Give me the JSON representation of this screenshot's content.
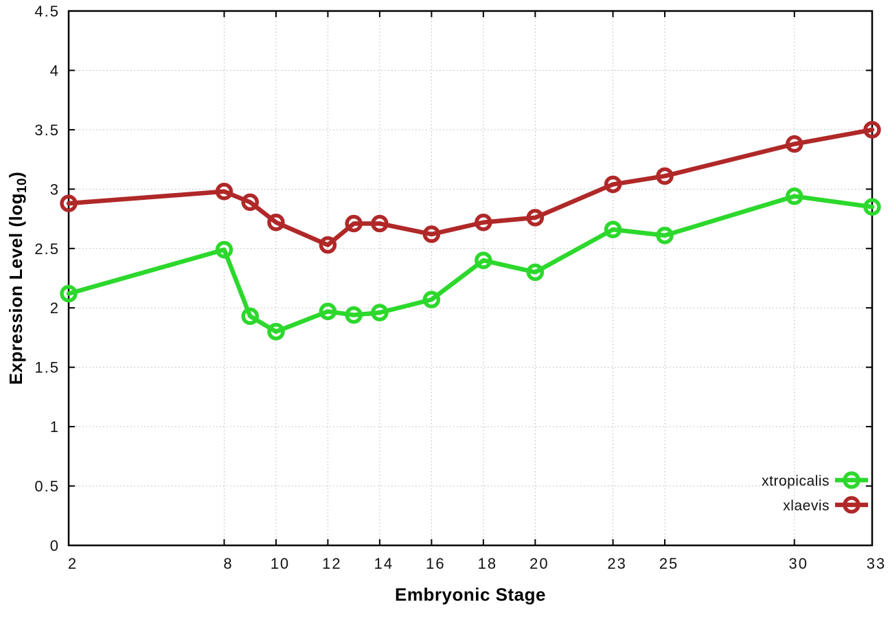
{
  "chart_data": {
    "type": "line",
    "xlabel": "Embryonic Stage",
    "ylabel": "Expression Level (log10)",
    "ylabel_parts": {
      "prefix": "Expression Level (log",
      "sub": "10",
      "suffix": ")"
    },
    "xlim": [
      2,
      33
    ],
    "ylim": [
      0,
      4.5
    ],
    "grid": true,
    "legend_position": "inside-bottom-right",
    "x_ticks": [
      2,
      8,
      10,
      12,
      14,
      16,
      18,
      20,
      23,
      25,
      30,
      33
    ],
    "x_tick_labels": [
      "2",
      "8",
      "10",
      "12",
      "14",
      "16",
      "18",
      "20",
      "23",
      "25",
      "30",
      "33"
    ],
    "y_ticks": [
      0,
      0.5,
      1,
      1.5,
      2,
      2.5,
      3,
      3.5,
      4,
      4.5
    ],
    "y_tick_labels": [
      "0",
      "0.5",
      "1",
      "1.5",
      "2",
      "2.5",
      "3",
      "3.5",
      "4",
      "4.5"
    ],
    "x": [
      2,
      8,
      9,
      10,
      12,
      13,
      14,
      16,
      18,
      20,
      23,
      25,
      30,
      33
    ],
    "series": [
      {
        "name": "xtropicalis",
        "color": "#2cd82c",
        "marker": "open-circle",
        "values": [
          2.12,
          2.49,
          1.93,
          1.8,
          1.97,
          1.94,
          1.96,
          2.07,
          2.4,
          2.3,
          2.66,
          2.61,
          2.94,
          2.85
        ]
      },
      {
        "name": "xlaevis",
        "color": "#b02828",
        "marker": "open-circle",
        "values": [
          2.88,
          2.98,
          2.89,
          2.72,
          2.53,
          2.71,
          2.71,
          2.62,
          2.72,
          2.76,
          3.04,
          3.11,
          3.38,
          3.5
        ]
      }
    ]
  },
  "colors": {
    "background": "#ffffff",
    "plot_border": "#000000",
    "grid": "#b5b5b5",
    "tick_label": "#111111"
  }
}
